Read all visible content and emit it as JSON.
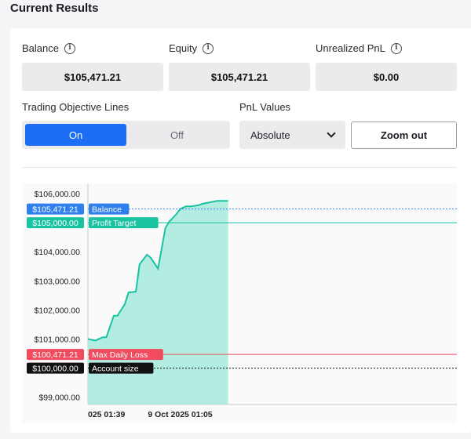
{
  "section_title": "Current Results",
  "metrics": {
    "balance": {
      "label": "Balance",
      "value": "$105,471.21",
      "icon": "info-icon"
    },
    "equity": {
      "label": "Equity",
      "value": "$105,471.21",
      "icon": "info-icon"
    },
    "unrealized": {
      "label": "Unrealized PnL",
      "value": "$0.00",
      "icon": "info-icon"
    }
  },
  "controls": {
    "objective_lines_label": "Trading Objective Lines",
    "on_label": "On",
    "off_label": "Off",
    "selected": "On",
    "pnl_label": "PnL Values",
    "pnl_selected": "Absolute",
    "zoom_out_label": "Zoom out"
  },
  "colors": {
    "accent": "#1d6ef5",
    "balance": "#2f80ed",
    "profit": "#19c3a2",
    "area": "#a6e9db",
    "loss": "#f04b5e",
    "account": "#111111"
  },
  "chart_data": {
    "type": "area",
    "y_ticks": [
      "$106,000.00",
      "$104,000.00",
      "$103,000.00",
      "$102,000.00",
      "$101,000.00",
      "$99,000.00"
    ],
    "y_tick_values": [
      106000,
      104000,
      103000,
      102000,
      101000,
      99000
    ],
    "ylim": [
      98750,
      106350
    ],
    "x_tick_labels": [
      "025 01:39",
      "9 Oct 2025 01:05"
    ],
    "x_tick_positions": [
      0,
      50
    ],
    "xlim": [
      0,
      200
    ],
    "grid": false,
    "series": [
      {
        "x": [
          0,
          4,
          8,
          10,
          14,
          16,
          20,
          22,
          26,
          28,
          32,
          34,
          38,
          42,
          44,
          48,
          50,
          53,
          56,
          60,
          62,
          66,
          70,
          72,
          76
        ],
        "y": [
          101000,
          100950,
          101060,
          101060,
          101800,
          101800,
          102200,
          102600,
          102630,
          103570,
          103900,
          103800,
          103420,
          104820,
          105030,
          105300,
          105470,
          105560,
          105560,
          105600,
          105650,
          105700,
          105750,
          105750,
          105750
        ]
      }
    ],
    "reference_lines": [
      {
        "label": "Balance",
        "tag": "$105,471.21",
        "value": 105471.21,
        "style": "dotted",
        "color": "#2f80ed"
      },
      {
        "label": "Profit Target",
        "tag": "$105,000.00",
        "value": 105000,
        "style": "solid",
        "color": "#19c3a2"
      },
      {
        "label": "Max Daily Loss",
        "tag": "$100,471.21",
        "value": 100471.21,
        "style": "solid",
        "color": "#f04b5e"
      },
      {
        "label": "Account size",
        "tag": "$100,000.00",
        "value": 100000,
        "style": "dotted",
        "color": "#111111"
      }
    ]
  }
}
